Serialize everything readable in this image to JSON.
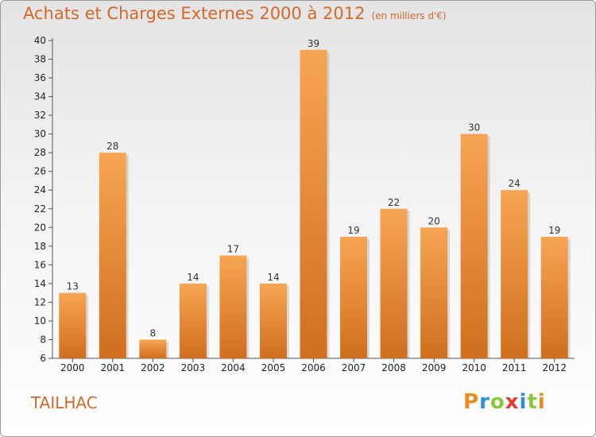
{
  "header": {
    "title": "Achats et Charges Externes 2000 à 2012",
    "unit": "(en milliers d'€)"
  },
  "footer": {
    "commune": "TAILHAC",
    "logo_text": "Proxiti",
    "logo_colors": [
      "#f08a1c",
      "#2e8fd1",
      "#8cc63f",
      "#e23b33",
      "#2e8fd1",
      "#8cc63f",
      "#f08a1c"
    ]
  },
  "colors": {
    "bar_light": "#f7a553",
    "bar_dark": "#d06f1e",
    "accent": "#d2682a"
  },
  "chart_data": {
    "type": "bar",
    "title": "Achats et Charges Externes 2000 à 2012",
    "subtitle": "(en milliers d'€)",
    "xlabel": "",
    "ylabel": "",
    "categories": [
      "2000",
      "2001",
      "2002",
      "2003",
      "2004",
      "2005",
      "2006",
      "2007",
      "2008",
      "2009",
      "2010",
      "2011",
      "2012"
    ],
    "values": [
      13,
      28,
      8,
      14,
      17,
      14,
      39,
      19,
      22,
      20,
      30,
      24,
      19
    ],
    "ylim": [
      6,
      40
    ],
    "yticks": [
      6,
      8,
      10,
      12,
      14,
      16,
      18,
      20,
      22,
      24,
      26,
      28,
      30,
      32,
      34,
      36,
      38,
      40
    ],
    "grid": false
  }
}
